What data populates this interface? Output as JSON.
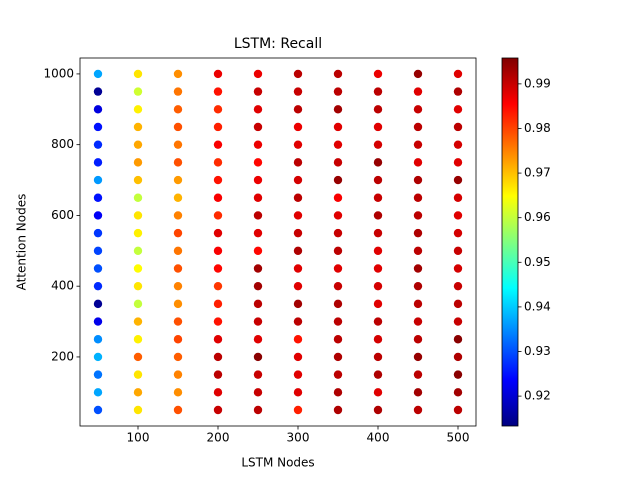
{
  "chart_data": {
    "type": "scatter",
    "title": "LSTM: Recall",
    "xlabel": "LSTM Nodes",
    "ylabel": "Attention Nodes",
    "colormap": "jet",
    "xlim": [
      27.5,
      522.5
    ],
    "xticks": [
      100,
      200,
      300,
      400,
      500
    ],
    "ylim": [
      4.8,
      1045
    ],
    "yticks": [
      200,
      400,
      600,
      800,
      1000
    ],
    "clim": [
      0.9133,
      0.9958
    ],
    "cticks": [
      0.92,
      0.93,
      0.94,
      0.95,
      0.96,
      0.97,
      0.98,
      0.99
    ],
    "x": [
      50,
      50,
      50,
      50,
      50,
      50,
      50,
      50,
      50,
      50,
      50,
      50,
      50,
      50,
      50,
      50,
      50,
      50,
      50,
      50,
      100,
      100,
      100,
      100,
      100,
      100,
      100,
      100,
      100,
      100,
      100,
      100,
      100,
      100,
      100,
      100,
      100,
      100,
      100,
      100,
      150,
      150,
      150,
      150,
      150,
      150,
      150,
      150,
      150,
      150,
      150,
      150,
      150,
      150,
      150,
      150,
      150,
      150,
      150,
      150,
      200,
      200,
      200,
      200,
      200,
      200,
      200,
      200,
      200,
      200,
      200,
      200,
      200,
      200,
      200,
      200,
      200,
      200,
      200,
      200,
      250,
      250,
      250,
      250,
      250,
      250,
      250,
      250,
      250,
      250,
      250,
      250,
      250,
      250,
      250,
      250,
      250,
      250,
      250,
      250,
      300,
      300,
      300,
      300,
      300,
      300,
      300,
      300,
      300,
      300,
      300,
      300,
      300,
      300,
      300,
      300,
      300,
      300,
      300,
      300,
      350,
      350,
      350,
      350,
      350,
      350,
      350,
      350,
      350,
      350,
      350,
      350,
      350,
      350,
      350,
      350,
      350,
      350,
      350,
      350,
      400,
      400,
      400,
      400,
      400,
      400,
      400,
      400,
      400,
      400,
      400,
      400,
      400,
      400,
      400,
      400,
      400,
      400,
      400,
      400,
      450,
      450,
      450,
      450,
      450,
      450,
      450,
      450,
      450,
      450,
      450,
      450,
      450,
      450,
      450,
      450,
      450,
      450,
      450,
      450,
      500,
      500,
      500,
      500,
      500,
      500,
      500,
      500,
      500,
      500,
      500,
      500,
      500,
      500,
      500,
      500,
      500,
      500,
      500,
      500
    ],
    "y": [
      50,
      100,
      150,
      200,
      250,
      300,
      350,
      400,
      450,
      500,
      550,
      600,
      650,
      700,
      750,
      800,
      850,
      900,
      950,
      1000,
      50,
      100,
      150,
      200,
      250,
      300,
      350,
      400,
      450,
      500,
      550,
      600,
      650,
      700,
      750,
      800,
      850,
      900,
      950,
      1000,
      50,
      100,
      150,
      200,
      250,
      300,
      350,
      400,
      450,
      500,
      550,
      600,
      650,
      700,
      750,
      800,
      850,
      900,
      950,
      1000,
      50,
      100,
      150,
      200,
      250,
      300,
      350,
      400,
      450,
      500,
      550,
      600,
      650,
      700,
      750,
      800,
      850,
      900,
      950,
      1000,
      50,
      100,
      150,
      200,
      250,
      300,
      350,
      400,
      450,
      500,
      550,
      600,
      650,
      700,
      750,
      800,
      850,
      900,
      950,
      1000,
      50,
      100,
      150,
      200,
      250,
      300,
      350,
      400,
      450,
      500,
      550,
      600,
      650,
      700,
      750,
      800,
      850,
      900,
      950,
      1000,
      50,
      100,
      150,
      200,
      250,
      300,
      350,
      400,
      450,
      500,
      550,
      600,
      650,
      700,
      750,
      800,
      850,
      900,
      950,
      1000,
      50,
      100,
      150,
      200,
      250,
      300,
      350,
      400,
      450,
      500,
      550,
      600,
      650,
      700,
      750,
      800,
      850,
      900,
      950,
      1000,
      50,
      100,
      150,
      200,
      250,
      300,
      350,
      400,
      450,
      500,
      550,
      600,
      650,
      700,
      750,
      800,
      850,
      900,
      950,
      1000,
      50,
      100,
      150,
      200,
      250,
      300,
      350,
      400,
      450,
      500,
      550,
      600,
      650,
      700,
      750,
      800,
      850,
      900,
      950,
      1000
    ],
    "values": [
      0.93,
      0.937,
      0.933,
      0.938,
      0.935,
      0.922,
      0.915,
      0.927,
      0.93,
      0.929,
      0.928,
      0.923,
      0.925,
      0.936,
      0.926,
      0.927,
      0.925,
      0.921,
      0.915,
      0.937,
      0.967,
      0.972,
      0.967,
      0.978,
      0.966,
      0.971,
      0.96,
      0.967,
      0.965,
      0.96,
      0.966,
      0.967,
      0.96,
      0.97,
      0.973,
      0.972,
      0.971,
      0.966,
      0.961,
      0.967,
      0.979,
      0.974,
      0.975,
      0.978,
      0.98,
      0.979,
      0.974,
      0.975,
      0.979,
      0.976,
      0.98,
      0.975,
      0.971,
      0.973,
      0.979,
      0.976,
      0.979,
      0.978,
      0.976,
      0.974,
      0.99,
      0.988,
      0.991,
      0.991,
      0.988,
      0.984,
      0.983,
      0.981,
      0.985,
      0.986,
      0.988,
      0.982,
      0.986,
      0.984,
      0.982,
      0.986,
      0.983,
      0.982,
      0.984,
      0.987,
      0.991,
      0.99,
      0.99,
      0.995,
      0.988,
      0.99,
      0.991,
      0.993,
      0.993,
      0.985,
      0.988,
      0.991,
      0.988,
      0.987,
      0.985,
      0.987,
      0.99,
      0.988,
      0.99,
      0.987,
      0.983,
      0.988,
      0.988,
      0.988,
      0.984,
      0.991,
      0.993,
      0.988,
      0.988,
      0.992,
      0.99,
      0.988,
      0.991,
      0.989,
      0.991,
      0.988,
      0.987,
      0.991,
      0.99,
      0.991,
      0.992,
      0.992,
      0.991,
      0.992,
      0.991,
      0.991,
      0.992,
      0.99,
      0.988,
      0.991,
      0.99,
      0.988,
      0.986,
      0.994,
      0.99,
      0.988,
      0.988,
      0.993,
      0.991,
      0.991,
      0.992,
      0.988,
      0.992,
      0.991,
      0.989,
      0.991,
      0.988,
      0.989,
      0.988,
      0.988,
      0.99,
      0.992,
      0.99,
      0.991,
      0.994,
      0.989,
      0.988,
      0.991,
      0.991,
      0.987,
      0.991,
      0.993,
      0.991,
      0.994,
      0.991,
      0.99,
      0.991,
      0.992,
      0.993,
      0.991,
      0.992,
      0.991,
      0.991,
      0.992,
      0.988,
      0.99,
      0.991,
      0.99,
      0.988,
      0.994,
      0.991,
      0.993,
      0.995,
      0.992,
      0.995,
      0.99,
      0.991,
      0.99,
      0.989,
      0.99,
      0.989,
      0.988,
      0.989,
      0.994,
      0.988,
      0.989,
      0.991,
      0.988,
      0.992,
      0.988
    ]
  }
}
